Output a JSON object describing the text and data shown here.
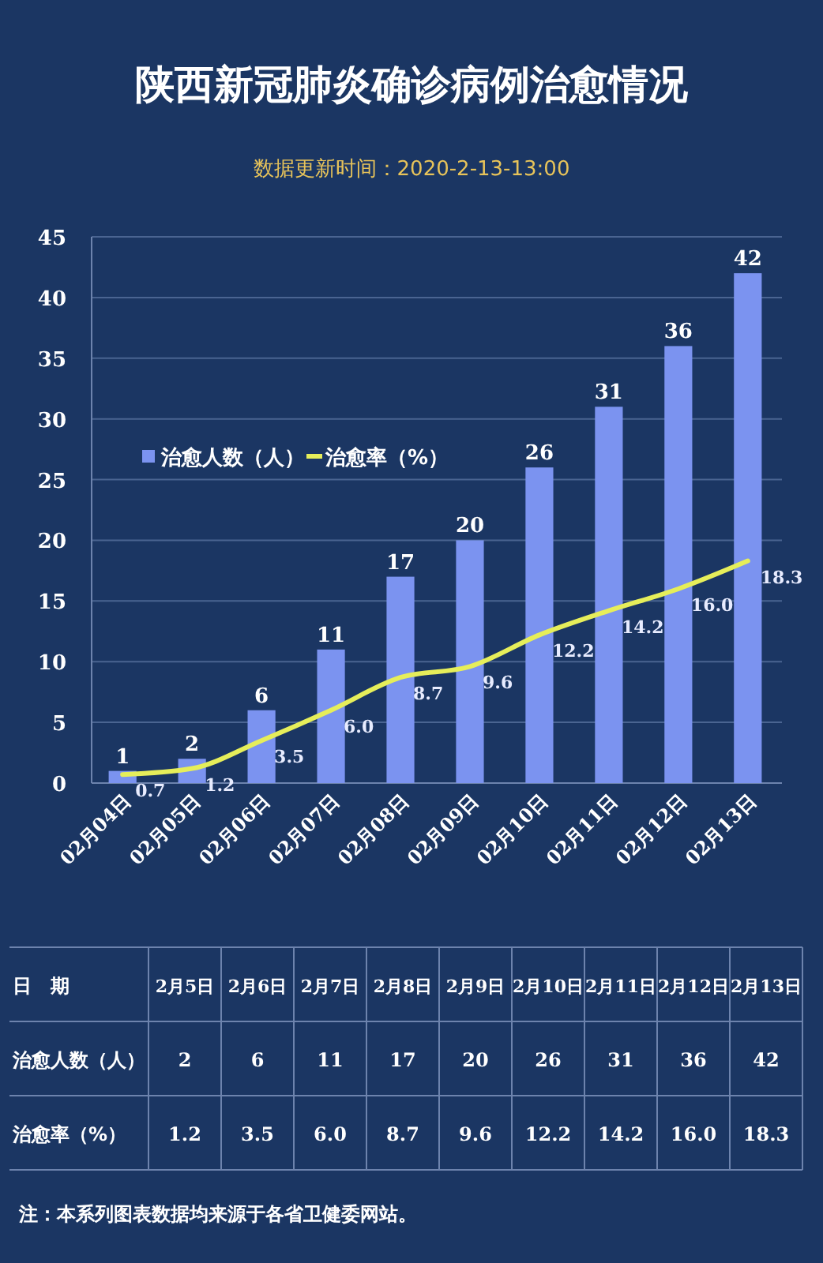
{
  "chart_data": {
    "type": "bar",
    "title": "陕西新冠肺炎确诊病例治愈情况",
    "subtitle": "数据更新时间：2020-2-13-13:00",
    "categories": [
      "02月04日",
      "02月05日",
      "02月06日",
      "02月07日",
      "02月08日",
      "02月09日",
      "02月10日",
      "02月11日",
      "02月12日",
      "02月13日"
    ],
    "series": [
      {
        "name": "治愈人数（人）",
        "color": "#7b93f0",
        "values": [
          1,
          2,
          6,
          11,
          17,
          20,
          26,
          31,
          36,
          42
        ],
        "value_labels": [
          "1",
          "2",
          "6",
          "11",
          "17",
          "20",
          "26",
          "31",
          "36",
          "42"
        ]
      },
      {
        "name": "治愈率（%）",
        "type": "line",
        "color": "#e6ee5a",
        "values": [
          0.7,
          1.2,
          3.5,
          6.0,
          8.7,
          9.6,
          12.2,
          14.2,
          16.0,
          18.3
        ],
        "value_labels": [
          "0.7",
          "1.2",
          "3.5",
          "6.0",
          "8.7",
          "9.6",
          "12.2",
          "14.2",
          "16.0",
          "18.3"
        ]
      }
    ],
    "ylim": [
      0,
      45
    ],
    "yticks": [
      0,
      5,
      10,
      15,
      20,
      25,
      30,
      35,
      40,
      45
    ],
    "grid": "y",
    "legend": "left",
    "marker": "none",
    "line_style": "solid",
    "annotations": [
      "日　期",
      "2月5日",
      "2月6日",
      "2月7日",
      "2月8日",
      "2月9日",
      "2月10日",
      "2月11日",
      "2月12日",
      "2月13日",
      "注：本系列图表数据均来源于各省卫健委网站。"
    ]
  }
}
